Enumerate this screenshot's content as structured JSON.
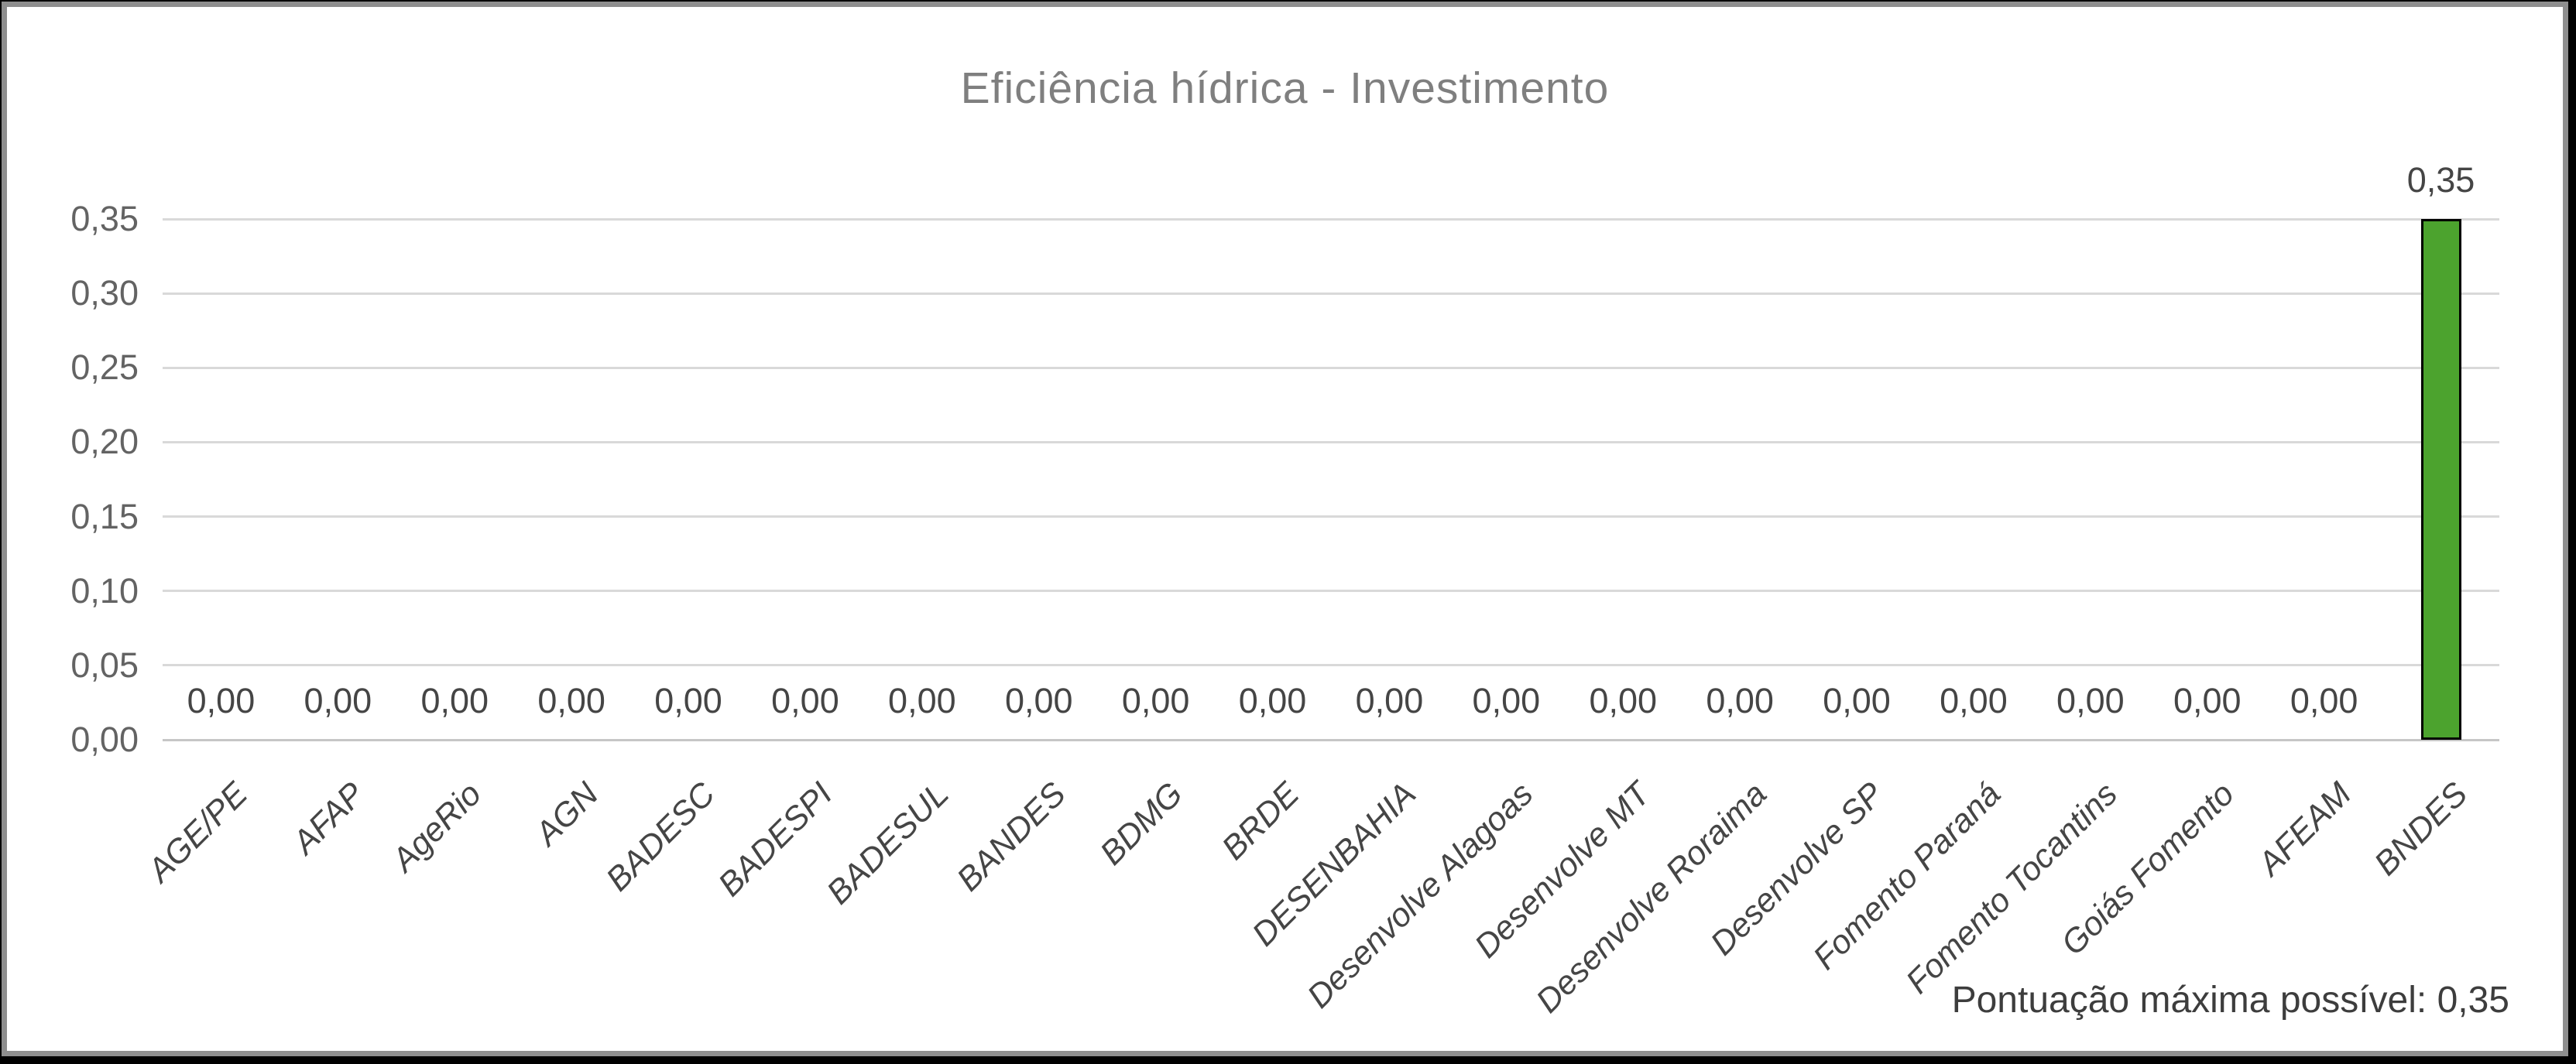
{
  "window": {
    "outer_background": "#000000",
    "frame_border_color": "#8E8E8E",
    "chart_background": "#FFFFFF"
  },
  "chart_data": {
    "type": "bar",
    "title": "Eficiência hídrica - Investimento",
    "categories": [
      "AGE/PE",
      "AFAP",
      "AgeRio",
      "AGN",
      "BADESC",
      "BADESPI",
      "BADESUL",
      "BANDES",
      "BDMG",
      "BRDE",
      "DESENBAHIA",
      "Desenvolve Alagoas",
      "Desenvolve MT",
      "Desenvolve Roraima",
      "Desenvolve SP",
      "Fomento Paraná",
      "Fomento Tocantins",
      "Goiás Fomento",
      "AFEAM",
      "BNDES"
    ],
    "values": [
      0,
      0,
      0,
      0,
      0,
      0,
      0,
      0,
      0,
      0,
      0,
      0,
      0,
      0,
      0,
      0,
      0,
      0,
      0,
      0.35
    ],
    "value_labels": [
      "0,00",
      "0,00",
      "0,00",
      "0,00",
      "0,00",
      "0,00",
      "0,00",
      "0,00",
      "0,00",
      "0,00",
      "0,00",
      "0,00",
      "0,00",
      "0,00",
      "0,00",
      "0,00",
      "0,00",
      "0,00",
      "0,00",
      "0,35"
    ],
    "y_tick_labels": [
      "0,00",
      "0,05",
      "0,10",
      "0,15",
      "0,20",
      "0,25",
      "0,30",
      "0,35"
    ],
    "ylim": [
      0,
      0.35
    ],
    "xlabel": "",
    "ylabel": "",
    "grid": true,
    "legend": "none",
    "colors": {
      "bar_fill": "#4CA32E",
      "bar_border": "#000000",
      "gridline": "#D9D9D9",
      "axis_line": "#C6C6C6",
      "title_text": "#7F7F7F",
      "y_tick_text": "#636363",
      "category_text": "#454545",
      "data_label_text": "#454545"
    }
  },
  "footer": {
    "note": "Pontuação máxima possível:  0,35"
  }
}
